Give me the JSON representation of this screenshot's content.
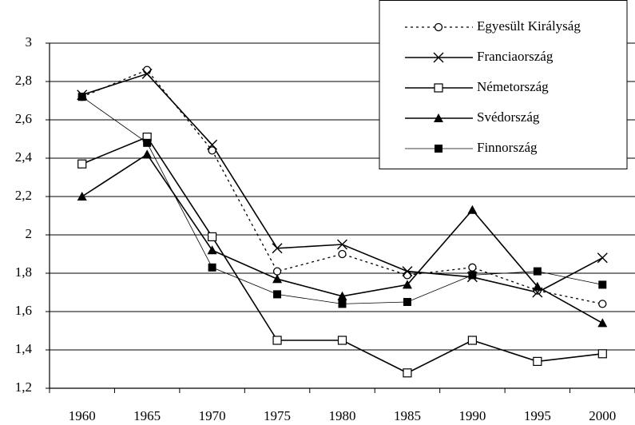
{
  "chart_data": {
    "type": "line",
    "categories": [
      "1960",
      "1965",
      "1970",
      "1975",
      "1980",
      "1985",
      "1990",
      "1995",
      "2000"
    ],
    "series": [
      {
        "name": "Egyesült Királyság",
        "color": "#000000",
        "marker": "circle",
        "dash": true,
        "line_width": 1.3,
        "values": [
          2.72,
          2.86,
          2.44,
          1.81,
          1.9,
          1.79,
          1.83,
          1.71,
          1.64
        ]
      },
      {
        "name": "Franciaország",
        "color": "#000000",
        "marker": "cross",
        "dash": false,
        "line_width": 1.6,
        "values": [
          2.73,
          2.84,
          2.47,
          1.93,
          1.95,
          1.81,
          1.78,
          1.7,
          1.88
        ]
      },
      {
        "name": "Németország",
        "color": "#000000",
        "marker": "open-square",
        "dash": false,
        "line_width": 1.6,
        "values": [
          2.37,
          2.51,
          1.99,
          1.45,
          1.45,
          1.28,
          1.45,
          1.34,
          1.38
        ]
      },
      {
        "name": "Svédország",
        "color": "#000000",
        "marker": "triangle",
        "dash": false,
        "line_width": 1.6,
        "values": [
          2.2,
          2.42,
          1.92,
          1.77,
          1.68,
          1.74,
          2.13,
          1.73,
          1.54
        ]
      },
      {
        "name": "Finnország",
        "color": "#000000",
        "marker": "filled-square",
        "dash": false,
        "line_width": 0.8,
        "values": [
          2.72,
          2.48,
          1.83,
          1.69,
          1.64,
          1.65,
          1.79,
          1.81,
          1.74
        ]
      }
    ],
    "ylim": [
      1.2,
      3
    ],
    "yticks": [
      {
        "value": 1.2,
        "label": "1,2"
      },
      {
        "value": 1.4,
        "label": "1,4"
      },
      {
        "value": 1.6,
        "label": "1,6"
      },
      {
        "value": 1.8,
        "label": "1,8"
      },
      2,
      {
        "value": 2.2,
        "label": "2,2"
      },
      {
        "value": 2.4,
        "label": "2,4"
      },
      {
        "value": 2.6,
        "label": "2,6"
      },
      {
        "value": 2.8,
        "label": "2,8"
      },
      3
    ],
    "grid": true,
    "legend": "top-right"
  }
}
